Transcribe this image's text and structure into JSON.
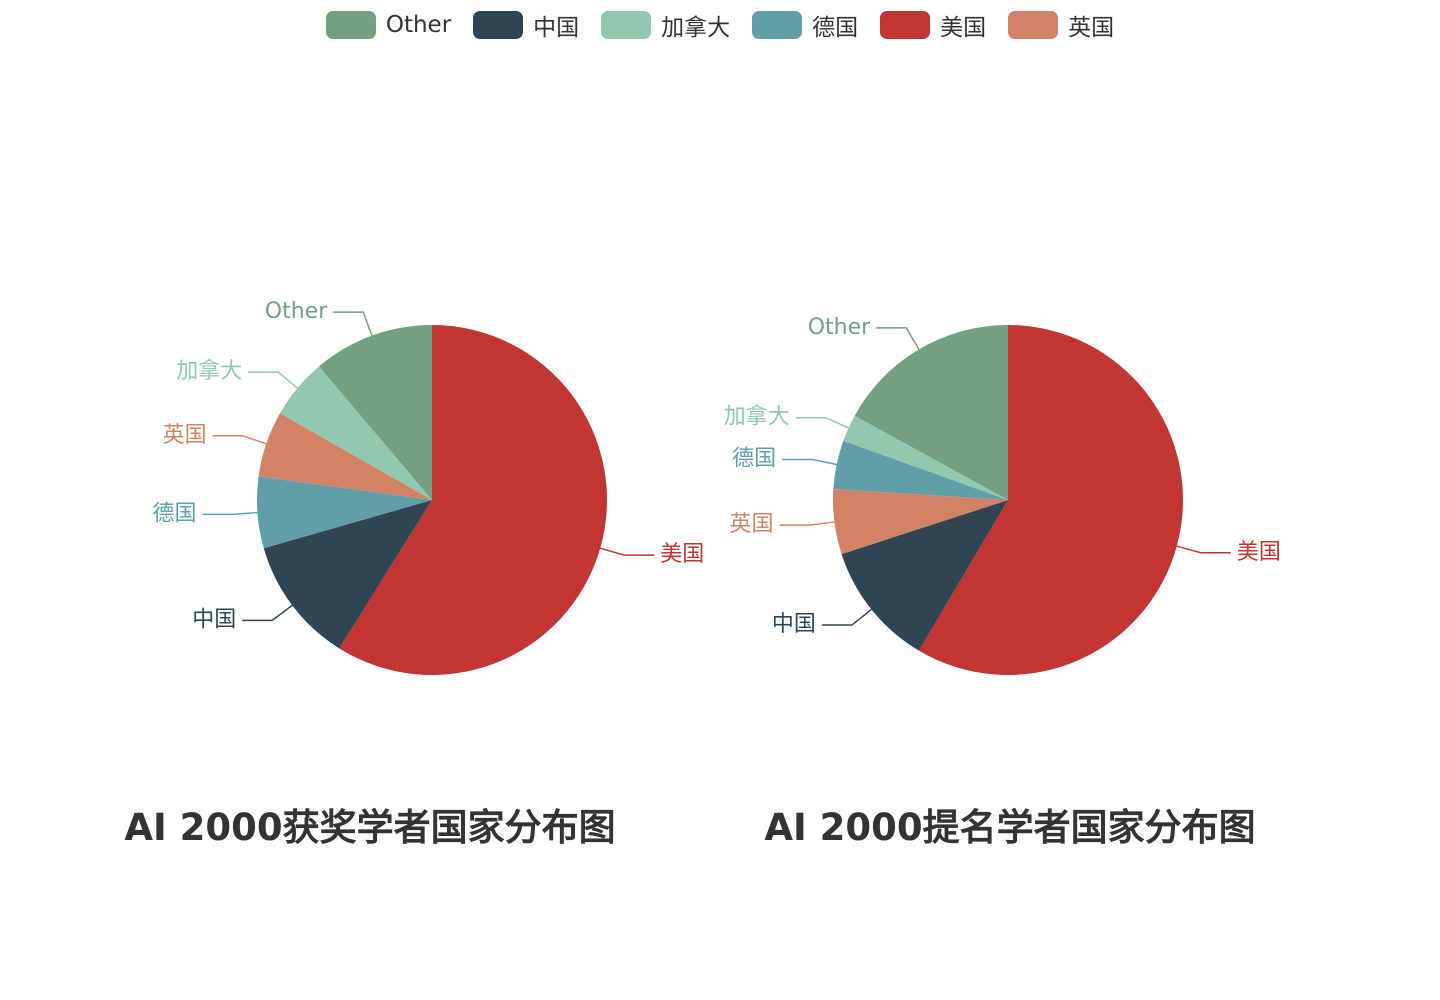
{
  "legend": [
    {
      "name": "Other",
      "color": "#759f81"
    },
    {
      "name": "中国",
      "color": "#2f4554"
    },
    {
      "name": "加拿大",
      "color": "#92c8af"
    },
    {
      "name": "德国",
      "color": "#619fa8"
    },
    {
      "name": "美国",
      "color": "#c23531"
    },
    {
      "name": "英国",
      "color": "#d48265"
    }
  ],
  "chart_data": [
    {
      "type": "pie",
      "title": "AI 2000获奖学者国家分布图",
      "start_angle_deg": 90,
      "direction": "clockwise",
      "slices": [
        {
          "name": "美国",
          "value": 58.0,
          "color": "#c23531"
        },
        {
          "name": "中国",
          "value": 11.5,
          "color": "#2f4554"
        },
        {
          "name": "德国",
          "value": 6.5,
          "color": "#619fa8"
        },
        {
          "name": "英国",
          "value": 6.0,
          "color": "#d48265"
        },
        {
          "name": "加拿大",
          "value": 5.5,
          "color": "#92c8af"
        },
        {
          "name": "Other",
          "value": 11.0,
          "color": "#759f81"
        }
      ]
    },
    {
      "type": "pie",
      "title": "AI 2000提名学者国家分布图",
      "start_angle_deg": 90,
      "direction": "clockwise",
      "slices": [
        {
          "name": "美国",
          "value": 58.5,
          "color": "#c23531"
        },
        {
          "name": "中国",
          "value": 11.5,
          "color": "#2f4554"
        },
        {
          "name": "英国",
          "value": 6.0,
          "color": "#d48265"
        },
        {
          "name": "德国",
          "value": 4.5,
          "color": "#619fa8"
        },
        {
          "name": "加拿大",
          "value": 2.5,
          "color": "#92c8af"
        },
        {
          "name": "Other",
          "value": 17.0,
          "color": "#759f81"
        }
      ]
    }
  ]
}
